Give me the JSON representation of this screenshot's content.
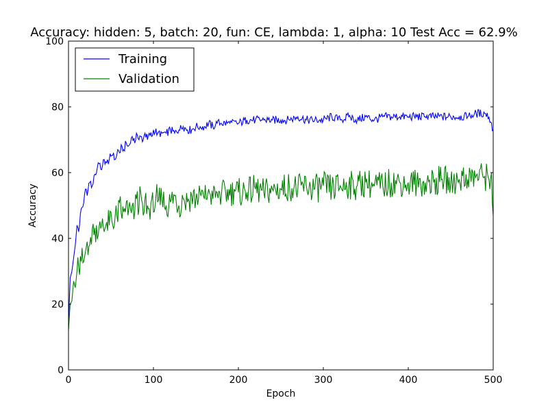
{
  "chart_data": {
    "type": "line",
    "title": "Accuracy: hidden: 5, batch: 20, fun: CE, lambda: 1, alpha: 10  Test Acc = 62.9%",
    "xlabel": "Epoch",
    "ylabel": "Accuracy",
    "xlim": [
      0,
      500
    ],
    "ylim": [
      0,
      100
    ],
    "xticks": [
      0,
      100,
      200,
      300,
      400,
      500
    ],
    "yticks": [
      0,
      20,
      40,
      60,
      80,
      100
    ],
    "grid": false,
    "legend_position": "top-left",
    "series": [
      {
        "name": "Training",
        "color": "#0000ff",
        "x": [
          0,
          2,
          4,
          6,
          8,
          10,
          12,
          15,
          18,
          20,
          22,
          25,
          28,
          30,
          33,
          35,
          38,
          40,
          42,
          45,
          48,
          50,
          53,
          55,
          58,
          60,
          63,
          65,
          68,
          70,
          73,
          75,
          78,
          80,
          83,
          85,
          88,
          90,
          93,
          95,
          98,
          100,
          105,
          110,
          115,
          120,
          125,
          130,
          135,
          140,
          145,
          150,
          155,
          160,
          165,
          170,
          175,
          180,
          190,
          200,
          210,
          220,
          230,
          240,
          250,
          260,
          270,
          280,
          290,
          300,
          310,
          320,
          330,
          340,
          350,
          360,
          370,
          380,
          390,
          400,
          410,
          420,
          430,
          440,
          450,
          460,
          470,
          480,
          490,
          495,
          500
        ],
        "y": [
          14,
          28,
          30,
          34,
          38,
          44,
          42,
          49,
          51,
          55,
          53,
          57,
          56,
          59,
          60,
          63,
          61,
          62,
          64,
          63,
          64,
          65,
          66,
          64,
          67,
          66,
          68,
          67,
          69,
          68,
          69,
          71,
          69,
          72,
          70,
          71,
          70,
          72,
          70,
          72,
          71,
          73,
          72,
          72,
          72,
          73,
          72,
          73,
          74,
          73,
          73,
          74,
          74,
          74,
          75,
          74,
          75,
          75,
          75,
          75,
          76,
          76,
          76,
          76,
          76,
          76,
          77,
          76,
          76,
          76,
          77,
          76,
          77,
          76,
          77,
          76,
          77,
          77,
          77,
          77,
          77,
          77,
          77,
          77,
          77,
          77,
          77,
          78,
          78,
          77,
          73
        ]
      },
      {
        "name": "Validation",
        "color": "#008000",
        "x": [
          0,
          2,
          4,
          6,
          8,
          10,
          12,
          15,
          18,
          20,
          22,
          25,
          28,
          30,
          33,
          35,
          38,
          40,
          42,
          45,
          48,
          50,
          53,
          55,
          58,
          60,
          63,
          65,
          68,
          70,
          73,
          75,
          78,
          80,
          83,
          85,
          88,
          90,
          93,
          95,
          98,
          100,
          103,
          105,
          110,
          115,
          120,
          125,
          130,
          135,
          140,
          145,
          150,
          155,
          160,
          165,
          170,
          175,
          180,
          185,
          190,
          195,
          200,
          210,
          220,
          230,
          240,
          250,
          260,
          270,
          280,
          290,
          300,
          310,
          320,
          330,
          340,
          350,
          360,
          370,
          380,
          390,
          400,
          410,
          420,
          430,
          440,
          450,
          460,
          470,
          480,
          490,
          495,
          498,
          500
        ],
        "y": [
          12,
          20,
          21,
          27,
          25,
          30,
          31,
          33,
          33,
          36,
          39,
          38,
          43,
          41,
          44,
          41,
          43,
          46,
          42,
          45,
          44,
          48,
          43,
          47,
          45,
          51,
          46,
          48,
          51,
          47,
          49,
          50,
          48,
          52,
          49,
          54,
          47,
          52,
          50,
          49,
          52,
          48,
          53,
          51,
          52,
          50,
          51,
          53,
          50,
          52,
          51,
          53,
          52,
          54,
          52,
          55,
          52,
          54,
          53,
          54,
          53,
          55,
          54,
          54,
          55,
          54,
          55,
          55,
          56,
          55,
          56,
          55,
          56,
          55,
          56,
          56,
          56,
          57,
          56,
          56,
          57,
          57,
          57,
          57,
          57,
          57,
          58,
          57,
          58,
          58,
          59,
          59,
          58,
          60,
          47
        ]
      }
    ]
  }
}
